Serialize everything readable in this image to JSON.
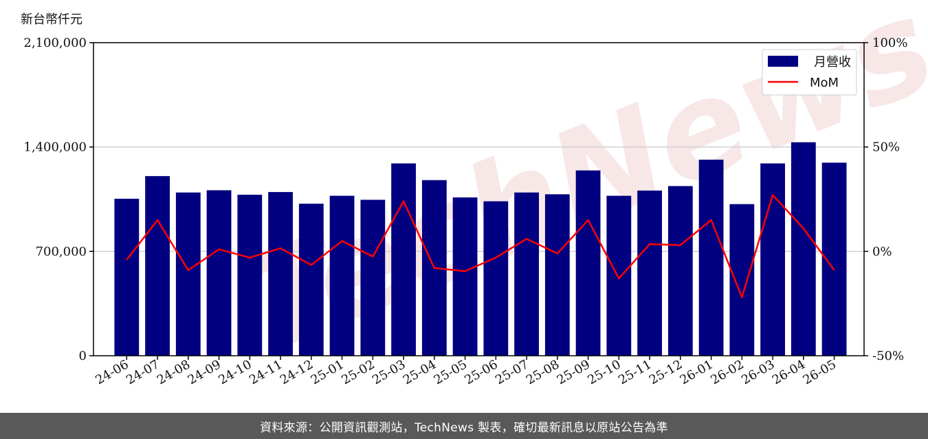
{
  "unit_label": "新台幣仟元",
  "footer": "資料來源：公開資訊觀測站，TechNews 製表，確切最新訊息以原站公告為準",
  "watermark": "TechNews",
  "colors": {
    "bar": "#000080",
    "line": "#ff0000",
    "grid": "#d0d0d0",
    "watermark": "#f2d4d4"
  },
  "chart_data": {
    "type": "bar",
    "categories": [
      "24-06",
      "24-07",
      "24-08",
      "24-09",
      "24-10",
      "24-11",
      "24-12",
      "25-01",
      "25-02",
      "25-03",
      "25-04",
      "25-05",
      "25-06",
      "25-07",
      "25-08",
      "25-09",
      "25-10",
      "25-11",
      "25-12",
      "26-01",
      "26-02",
      "26-03",
      "26-04",
      "26-05"
    ],
    "series": [
      {
        "name": "月營收",
        "type": "bar",
        "axis": "left",
        "values": [
          1053000,
          1205000,
          1095000,
          1110000,
          1080000,
          1098000,
          1020000,
          1073000,
          1046000,
          1290000,
          1178000,
          1062000,
          1036000,
          1095000,
          1083000,
          1243000,
          1073000,
          1108000,
          1138000,
          1315000,
          1017000,
          1290000,
          1432000,
          1295000
        ]
      },
      {
        "name": "MoM",
        "type": "line",
        "axis": "right",
        "unit": "%",
        "values": [
          -4,
          15,
          -9,
          1,
          -3,
          1.5,
          -6.5,
          5,
          -2.5,
          24,
          -8,
          -9.5,
          -3,
          6,
          -1,
          15,
          -13,
          3.5,
          3,
          15,
          -22,
          27,
          11,
          -9
        ]
      }
    ],
    "left_axis": {
      "ylim": [
        0,
        2100000
      ],
      "ticks": [
        "0",
        "700,000",
        "1,400,000",
        "2,100,000"
      ]
    },
    "right_axis": {
      "ylim": [
        -50,
        100
      ],
      "ticks": [
        "-50%",
        "0%",
        "50%",
        "100%"
      ]
    },
    "grid": "horizontal",
    "legend": "top-right"
  }
}
